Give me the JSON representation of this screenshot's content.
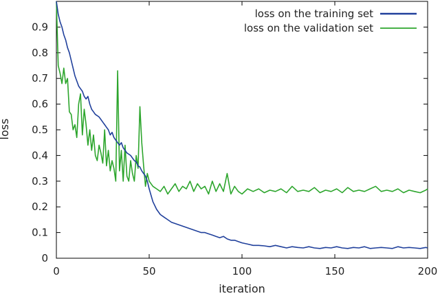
{
  "chart_data": {
    "type": "line",
    "xlabel": "iteration",
    "ylabel": "loss",
    "xlim": [
      0,
      200
    ],
    "ylim": [
      0,
      1.0
    ],
    "x_ticks": [
      0,
      50,
      100,
      150,
      200
    ],
    "y_ticks": [
      0,
      0.1,
      0.2,
      0.3,
      0.4,
      0.5,
      0.6,
      0.7,
      0.8,
      0.9
    ],
    "grid": false,
    "legend_position": "top-right",
    "series": [
      {
        "name": "loss on the training set",
        "color": "#1f3f9b",
        "x": [
          0,
          1,
          2,
          3,
          4,
          5,
          6,
          7,
          8,
          9,
          10,
          11,
          12,
          13,
          14,
          15,
          16,
          17,
          18,
          19,
          20,
          21,
          22,
          23,
          24,
          25,
          26,
          27,
          28,
          29,
          30,
          31,
          32,
          33,
          34,
          35,
          36,
          37,
          38,
          39,
          40,
          41,
          42,
          43,
          44,
          45,
          46,
          47,
          48,
          49,
          50,
          52,
          54,
          56,
          58,
          60,
          62,
          64,
          66,
          68,
          70,
          72,
          74,
          76,
          78,
          80,
          82,
          84,
          86,
          88,
          90,
          92,
          94,
          96,
          98,
          100,
          103,
          106,
          109,
          112,
          115,
          118,
          121,
          124,
          127,
          130,
          133,
          136,
          139,
          142,
          145,
          148,
          151,
          154,
          157,
          160,
          163,
          166,
          169,
          172,
          175,
          178,
          181,
          184,
          187,
          190,
          193,
          196,
          199,
          200
        ],
        "y": [
          1.0,
          0.95,
          0.92,
          0.9,
          0.87,
          0.85,
          0.82,
          0.8,
          0.77,
          0.74,
          0.71,
          0.69,
          0.67,
          0.66,
          0.65,
          0.63,
          0.62,
          0.63,
          0.6,
          0.58,
          0.57,
          0.56,
          0.555,
          0.55,
          0.54,
          0.53,
          0.52,
          0.51,
          0.5,
          0.48,
          0.49,
          0.47,
          0.46,
          0.45,
          0.44,
          0.45,
          0.43,
          0.42,
          0.41,
          0.405,
          0.4,
          0.39,
          0.38,
          0.375,
          0.36,
          0.355,
          0.34,
          0.33,
          0.32,
          0.3,
          0.27,
          0.22,
          0.19,
          0.17,
          0.16,
          0.15,
          0.14,
          0.135,
          0.13,
          0.125,
          0.12,
          0.115,
          0.11,
          0.105,
          0.1,
          0.1,
          0.095,
          0.09,
          0.085,
          0.08,
          0.085,
          0.075,
          0.07,
          0.07,
          0.065,
          0.06,
          0.055,
          0.05,
          0.05,
          0.048,
          0.045,
          0.05,
          0.045,
          0.04,
          0.045,
          0.042,
          0.04,
          0.045,
          0.04,
          0.038,
          0.042,
          0.04,
          0.045,
          0.04,
          0.038,
          0.042,
          0.04,
          0.045,
          0.038,
          0.04,
          0.042,
          0.04,
          0.038,
          0.045,
          0.04,
          0.042,
          0.04,
          0.038,
          0.042,
          0.04
        ]
      },
      {
        "name": "loss on the validation set",
        "color": "#2ca52c",
        "x": [
          0,
          1,
          2,
          3,
          4,
          5,
          6,
          7,
          8,
          9,
          10,
          11,
          12,
          13,
          14,
          15,
          16,
          17,
          18,
          19,
          20,
          21,
          22,
          23,
          24,
          25,
          26,
          27,
          28,
          29,
          30,
          31,
          32,
          33,
          34,
          35,
          36,
          37,
          38,
          39,
          40,
          41,
          42,
          43,
          44,
          45,
          46,
          47,
          48,
          49,
          50,
          52,
          54,
          56,
          58,
          60,
          62,
          64,
          66,
          68,
          70,
          72,
          74,
          76,
          78,
          80,
          82,
          84,
          86,
          88,
          90,
          92,
          94,
          96,
          98,
          100,
          103,
          106,
          109,
          112,
          115,
          118,
          121,
          124,
          127,
          130,
          133,
          136,
          139,
          142,
          145,
          148,
          151,
          154,
          157,
          160,
          163,
          166,
          169,
          172,
          175,
          178,
          181,
          184,
          187,
          190,
          193,
          196,
          199,
          200
        ],
        "y": [
          1.0,
          0.75,
          0.72,
          0.68,
          0.74,
          0.68,
          0.7,
          0.57,
          0.56,
          0.5,
          0.52,
          0.47,
          0.6,
          0.64,
          0.48,
          0.58,
          0.52,
          0.44,
          0.5,
          0.42,
          0.48,
          0.4,
          0.38,
          0.44,
          0.41,
          0.37,
          0.5,
          0.36,
          0.42,
          0.34,
          0.38,
          0.35,
          0.3,
          0.73,
          0.34,
          0.42,
          0.3,
          0.44,
          0.32,
          0.3,
          0.38,
          0.33,
          0.3,
          0.4,
          0.35,
          0.59,
          0.45,
          0.36,
          0.28,
          0.33,
          0.3,
          0.28,
          0.27,
          0.26,
          0.28,
          0.25,
          0.27,
          0.29,
          0.26,
          0.28,
          0.27,
          0.3,
          0.26,
          0.29,
          0.27,
          0.28,
          0.25,
          0.3,
          0.26,
          0.29,
          0.26,
          0.33,
          0.25,
          0.28,
          0.26,
          0.25,
          0.27,
          0.26,
          0.27,
          0.255,
          0.265,
          0.26,
          0.27,
          0.255,
          0.28,
          0.26,
          0.265,
          0.26,
          0.275,
          0.255,
          0.265,
          0.26,
          0.27,
          0.255,
          0.275,
          0.26,
          0.265,
          0.26,
          0.27,
          0.28,
          0.26,
          0.265,
          0.26,
          0.27,
          0.255,
          0.265,
          0.26,
          0.255,
          0.265,
          0.27
        ]
      }
    ]
  }
}
